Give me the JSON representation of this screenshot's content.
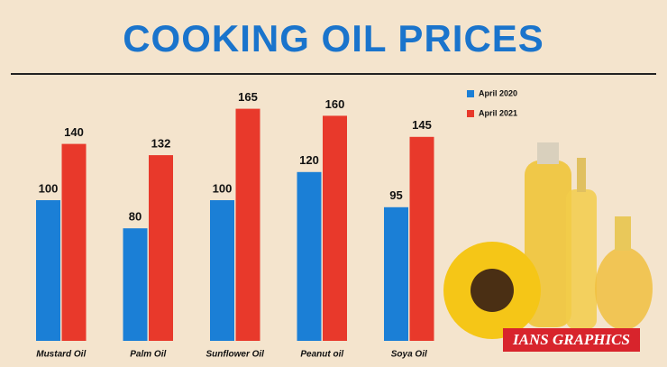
{
  "chart_data": {
    "type": "bar",
    "title": "COOKING OIL PRICES",
    "categories": [
      "Mustard Oil",
      "Palm Oil",
      "Sunflower Oil",
      "Peanut oil",
      "Soya Oil"
    ],
    "series": [
      {
        "name": "April 2020",
        "color": "#1b7fd6",
        "values": [
          100,
          80,
          100,
          120,
          95
        ]
      },
      {
        "name": "April 2021",
        "color": "#e8392b",
        "values": [
          140,
          132,
          165,
          160,
          145
        ]
      }
    ],
    "credit": "IANS GRAPHICS"
  }
}
